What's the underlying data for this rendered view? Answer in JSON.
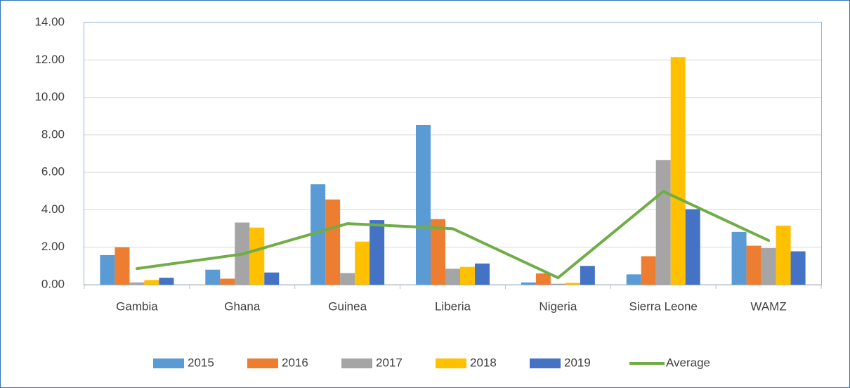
{
  "chart_data": {
    "type": "bar",
    "categories": [
      "Gambia",
      "Ghana",
      "Guinea",
      "Liberia",
      "Nigeria",
      "Sierra Leone",
      "WAMZ"
    ],
    "series": [
      {
        "name": "2015",
        "color": "#5b9bd5",
        "values": [
          1.58,
          0.8,
          5.36,
          8.52,
          0.12,
          0.55,
          2.82
        ]
      },
      {
        "name": "2016",
        "color": "#ed7d31",
        "values": [
          2.0,
          0.32,
          4.55,
          3.5,
          0.6,
          1.52,
          2.08
        ]
      },
      {
        "name": "2017",
        "color": "#a5a5a5",
        "values": [
          0.12,
          3.32,
          0.62,
          0.85,
          0.05,
          6.65,
          1.95
        ]
      },
      {
        "name": "2018",
        "color": "#ffc000",
        "values": [
          0.25,
          3.05,
          2.3,
          0.95,
          0.1,
          12.15,
          3.15
        ]
      },
      {
        "name": "2019",
        "color": "#4472c4",
        "values": [
          0.37,
          0.65,
          3.45,
          1.13,
          1.0,
          4.03,
          1.78
        ]
      },
      {
        "name": "Average",
        "color": "#70ad47",
        "type": "line",
        "values": [
          0.86,
          1.63,
          3.26,
          2.99,
          0.37,
          4.98,
          2.36
        ]
      }
    ],
    "ylim": [
      0,
      14
    ],
    "yticks": [
      {
        "value": 0,
        "label": "0.00"
      },
      {
        "value": 2,
        "label": "2.00"
      },
      {
        "value": 4,
        "label": "4.00"
      },
      {
        "value": 6,
        "label": "6.00"
      },
      {
        "value": 8,
        "label": "8.00"
      },
      {
        "value": 10,
        "label": "10.00"
      },
      {
        "value": 12,
        "label": "12.00"
      },
      {
        "value": 14,
        "label": "14.00"
      }
    ],
    "grid": true,
    "legend": "bottom"
  }
}
